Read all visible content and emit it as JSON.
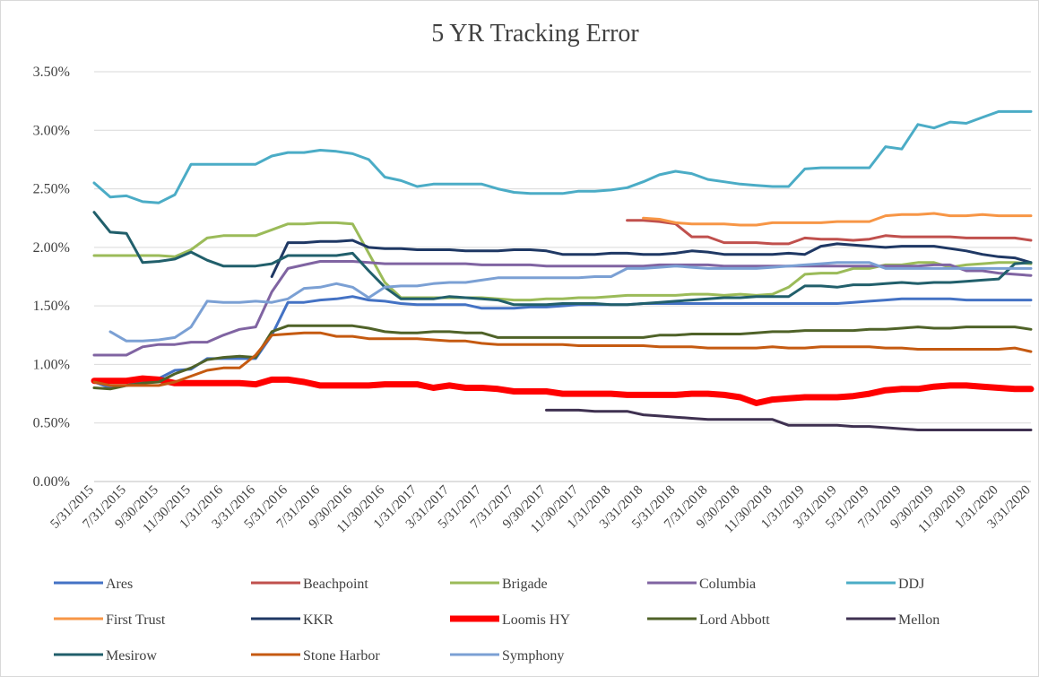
{
  "chart_data": {
    "type": "line",
    "title": "5 YR Tracking Error",
    "categories": [
      "5/31/2015",
      null,
      "7/31/2015",
      null,
      "9/30/2015",
      null,
      "11/30/2015",
      null,
      "1/31/2016",
      null,
      "3/31/2016",
      null,
      "5/31/2016",
      null,
      "7/31/2016",
      null,
      "9/30/2016",
      null,
      "11/30/2016",
      null,
      "1/31/2017",
      null,
      "3/31/2017",
      null,
      "5/31/2017",
      null,
      "7/31/2017",
      null,
      "9/30/2017",
      null,
      "11/30/2017",
      null,
      "1/31/2018",
      null,
      "3/31/2018",
      null,
      "5/31/2018",
      null,
      "7/31/2018",
      null,
      "9/30/2018",
      null,
      "11/30/2018",
      null,
      "1/31/2019",
      null,
      "3/31/2019",
      null,
      "5/31/2019",
      null,
      "7/31/2019",
      null,
      "9/30/2019",
      null,
      "11/30/2019",
      null,
      "1/31/2020",
      null,
      "3/31/2020"
    ],
    "ylim": [
      0,
      3.5
    ],
    "yticks": [
      {
        "value": 0,
        "label": "0.00%"
      },
      {
        "value": 0.5,
        "label": "0.50%"
      },
      {
        "value": 1,
        "label": "1.00%"
      },
      {
        "value": 1.5,
        "label": "1.50%"
      },
      {
        "value": 2,
        "label": "2.00%"
      },
      {
        "value": 2.5,
        "label": "2.50%"
      },
      {
        "value": 3,
        "label": "3.00%"
      },
      {
        "value": 3.5,
        "label": "3.50%"
      }
    ],
    "grid": true,
    "legend": "bottom",
    "series": [
      {
        "name": "Ares",
        "color": "#4472c4",
        "values": [
          0.85,
          0.8,
          0.82,
          0.85,
          0.88,
          0.95,
          0.96,
          1.05,
          1.05,
          1.05,
          1.05,
          1.25,
          1.53,
          1.53,
          1.55,
          1.56,
          1.58,
          1.55,
          1.54,
          1.52,
          1.51,
          1.51,
          1.51,
          1.51,
          1.48,
          1.48,
          1.48,
          1.49,
          1.49,
          1.5,
          1.51,
          1.51,
          1.51,
          1.51,
          1.52,
          1.52,
          1.52,
          1.52,
          1.52,
          1.52,
          1.52,
          1.52,
          1.52,
          1.52,
          1.52,
          1.52,
          1.52,
          1.53,
          1.54,
          1.55,
          1.56,
          1.56,
          1.56,
          1.56,
          1.55,
          1.55,
          1.55,
          1.55,
          1.55
        ]
      },
      {
        "name": "Beachpoint",
        "color": "#c0504d",
        "values": [
          null,
          null,
          null,
          null,
          null,
          null,
          null,
          null,
          null,
          null,
          null,
          null,
          null,
          null,
          null,
          null,
          null,
          null,
          null,
          null,
          null,
          null,
          null,
          null,
          null,
          null,
          null,
          null,
          null,
          null,
          null,
          null,
          null,
          2.23,
          2.23,
          2.22,
          2.2,
          2.09,
          2.09,
          2.04,
          2.04,
          2.04,
          2.03,
          2.03,
          2.08,
          2.07,
          2.07,
          2.06,
          2.07,
          2.1,
          2.09,
          2.09,
          2.09,
          2.09,
          2.08,
          2.08,
          2.08,
          2.08,
          2.06
        ]
      },
      {
        "name": "Brigade",
        "color": "#9bbb59",
        "values": [
          1.93,
          1.93,
          1.93,
          1.93,
          1.93,
          1.92,
          1.98,
          2.08,
          2.1,
          2.1,
          2.1,
          2.15,
          2.2,
          2.2,
          2.21,
          2.21,
          2.2,
          1.95,
          1.7,
          1.57,
          1.57,
          1.57,
          1.57,
          1.57,
          1.57,
          1.56,
          1.55,
          1.55,
          1.56,
          1.56,
          1.57,
          1.57,
          1.58,
          1.59,
          1.59,
          1.59,
          1.59,
          1.6,
          1.6,
          1.59,
          1.6,
          1.59,
          1.6,
          1.66,
          1.77,
          1.78,
          1.78,
          1.82,
          1.82,
          1.85,
          1.85,
          1.87,
          1.87,
          1.83,
          1.85,
          1.86,
          1.87,
          1.87,
          1.86
        ]
      },
      {
        "name": "Columbia",
        "color": "#8064a2",
        "values": [
          1.08,
          1.08,
          1.08,
          1.15,
          1.17,
          1.17,
          1.19,
          1.19,
          1.25,
          1.3,
          1.32,
          1.62,
          1.82,
          1.85,
          1.88,
          1.88,
          1.88,
          1.87,
          1.86,
          1.86,
          1.86,
          1.86,
          1.86,
          1.86,
          1.85,
          1.85,
          1.85,
          1.85,
          1.84,
          1.84,
          1.84,
          1.84,
          1.84,
          1.84,
          1.84,
          1.85,
          1.85,
          1.85,
          1.85,
          1.84,
          1.84,
          1.84,
          1.84,
          1.84,
          1.84,
          1.84,
          1.84,
          1.84,
          1.84,
          1.84,
          1.84,
          1.84,
          1.85,
          1.85,
          1.8,
          1.8,
          1.78,
          1.77,
          1.76
        ]
      },
      {
        "name": "DDJ",
        "color": "#4bacc6",
        "values": [
          2.55,
          2.43,
          2.44,
          2.39,
          2.38,
          2.45,
          2.71,
          2.71,
          2.71,
          2.71,
          2.71,
          2.78,
          2.81,
          2.81,
          2.83,
          2.82,
          2.8,
          2.75,
          2.6,
          2.57,
          2.52,
          2.54,
          2.54,
          2.54,
          2.54,
          2.5,
          2.47,
          2.46,
          2.46,
          2.46,
          2.48,
          2.48,
          2.49,
          2.51,
          2.56,
          2.62,
          2.65,
          2.63,
          2.58,
          2.56,
          2.54,
          2.53,
          2.52,
          2.52,
          2.67,
          2.68,
          2.68,
          2.68,
          2.68,
          2.86,
          2.84,
          3.05,
          3.02,
          3.07,
          3.06,
          3.11,
          3.16,
          3.16,
          3.16
        ]
      },
      {
        "name": "First Trust",
        "color": "#f79646",
        "values": [
          null,
          null,
          null,
          null,
          null,
          null,
          null,
          null,
          null,
          null,
          null,
          null,
          null,
          null,
          null,
          null,
          null,
          null,
          null,
          null,
          null,
          null,
          null,
          null,
          null,
          null,
          null,
          null,
          null,
          null,
          null,
          null,
          null,
          null,
          2.25,
          2.24,
          2.21,
          2.2,
          2.2,
          2.2,
          2.19,
          2.19,
          2.21,
          2.21,
          2.21,
          2.21,
          2.22,
          2.22,
          2.22,
          2.27,
          2.28,
          2.28,
          2.29,
          2.27,
          2.27,
          2.28,
          2.27,
          2.27,
          2.27
        ]
      },
      {
        "name": "KKR",
        "color": "#1f3864",
        "values": [
          null,
          null,
          null,
          null,
          null,
          null,
          null,
          null,
          null,
          null,
          null,
          1.75,
          2.04,
          2.04,
          2.05,
          2.05,
          2.06,
          2.0,
          1.99,
          1.99,
          1.98,
          1.98,
          1.98,
          1.97,
          1.97,
          1.97,
          1.98,
          1.98,
          1.97,
          1.94,
          1.94,
          1.94,
          1.95,
          1.95,
          1.94,
          1.94,
          1.95,
          1.97,
          1.96,
          1.94,
          1.94,
          1.94,
          1.94,
          1.95,
          1.94,
          2.01,
          2.03,
          2.02,
          2.01,
          2.0,
          2.01,
          2.01,
          2.01,
          1.99,
          1.97,
          1.94,
          1.92,
          1.91,
          1.87
        ]
      },
      {
        "name": "Loomis HY",
        "color": "#ff0000",
        "line_width": 7,
        "values": [
          0.86,
          0.86,
          0.86,
          0.88,
          0.87,
          0.84,
          0.84,
          0.84,
          0.84,
          0.84,
          0.83,
          0.87,
          0.87,
          0.85,
          0.82,
          0.82,
          0.82,
          0.82,
          0.83,
          0.83,
          0.83,
          0.8,
          0.82,
          0.8,
          0.8,
          0.79,
          0.77,
          0.77,
          0.77,
          0.75,
          0.75,
          0.75,
          0.75,
          0.74,
          0.74,
          0.74,
          0.74,
          0.75,
          0.75,
          0.74,
          0.72,
          0.67,
          0.7,
          0.71,
          0.72,
          0.72,
          0.72,
          0.73,
          0.75,
          0.78,
          0.79,
          0.79,
          0.81,
          0.82,
          0.82,
          0.81,
          0.8,
          0.79,
          0.79
        ]
      },
      {
        "name": "Lord Abbott",
        "color": "#4f6228",
        "values": [
          0.8,
          0.79,
          0.82,
          0.84,
          0.85,
          0.92,
          0.97,
          1.04,
          1.06,
          1.07,
          1.06,
          1.28,
          1.33,
          1.33,
          1.33,
          1.33,
          1.33,
          1.31,
          1.28,
          1.27,
          1.27,
          1.28,
          1.28,
          1.27,
          1.27,
          1.23,
          1.23,
          1.23,
          1.23,
          1.23,
          1.23,
          1.23,
          1.23,
          1.23,
          1.23,
          1.25,
          1.25,
          1.26,
          1.26,
          1.26,
          1.26,
          1.27,
          1.28,
          1.28,
          1.29,
          1.29,
          1.29,
          1.29,
          1.3,
          1.3,
          1.31,
          1.32,
          1.31,
          1.31,
          1.32,
          1.32,
          1.32,
          1.32,
          1.3
        ]
      },
      {
        "name": "Mellon",
        "color": "#3f3151",
        "values": [
          null,
          null,
          null,
          null,
          null,
          null,
          null,
          null,
          null,
          null,
          null,
          null,
          null,
          null,
          null,
          null,
          null,
          null,
          null,
          null,
          null,
          null,
          null,
          null,
          null,
          null,
          null,
          null,
          0.61,
          0.61,
          0.61,
          0.6,
          0.6,
          0.6,
          0.57,
          0.56,
          0.55,
          0.54,
          0.53,
          0.53,
          0.53,
          0.53,
          0.53,
          0.48,
          0.48,
          0.48,
          0.48,
          0.47,
          0.47,
          0.46,
          0.45,
          0.44,
          0.44,
          0.44,
          0.44,
          0.44,
          0.44,
          0.44,
          0.44
        ]
      },
      {
        "name": "Mesirow",
        "color": "#215f6b",
        "values": [
          2.3,
          2.13,
          2.12,
          1.87,
          1.88,
          1.9,
          1.96,
          1.89,
          1.84,
          1.84,
          1.84,
          1.86,
          1.93,
          1.93,
          1.93,
          1.93,
          1.95,
          1.8,
          1.66,
          1.56,
          1.56,
          1.56,
          1.58,
          1.57,
          1.56,
          1.55,
          1.51,
          1.51,
          1.51,
          1.52,
          1.52,
          1.52,
          1.51,
          1.51,
          1.52,
          1.53,
          1.54,
          1.55,
          1.56,
          1.57,
          1.57,
          1.58,
          1.58,
          1.58,
          1.67,
          1.67,
          1.66,
          1.68,
          1.68,
          1.69,
          1.7,
          1.69,
          1.7,
          1.7,
          1.71,
          1.72,
          1.73,
          1.86,
          1.87
        ]
      },
      {
        "name": "Stone Harbor",
        "color": "#c55a11",
        "values": [
          0.85,
          0.82,
          0.82,
          0.82,
          0.82,
          0.85,
          0.9,
          0.95,
          0.97,
          0.97,
          1.08,
          1.25,
          1.26,
          1.27,
          1.27,
          1.24,
          1.24,
          1.22,
          1.22,
          1.22,
          1.22,
          1.21,
          1.2,
          1.2,
          1.18,
          1.17,
          1.17,
          1.17,
          1.17,
          1.17,
          1.16,
          1.16,
          1.16,
          1.16,
          1.16,
          1.15,
          1.15,
          1.15,
          1.14,
          1.14,
          1.14,
          1.14,
          1.15,
          1.14,
          1.14,
          1.15,
          1.15,
          1.15,
          1.15,
          1.14,
          1.14,
          1.13,
          1.13,
          1.13,
          1.13,
          1.13,
          1.13,
          1.14,
          1.11
        ]
      },
      {
        "name": "Symphony",
        "color": "#7ba0d4",
        "values": [
          null,
          1.28,
          1.2,
          1.2,
          1.21,
          1.23,
          1.32,
          1.54,
          1.53,
          1.53,
          1.54,
          1.53,
          1.56,
          1.65,
          1.66,
          1.69,
          1.66,
          1.57,
          1.66,
          1.67,
          1.67,
          1.69,
          1.7,
          1.7,
          1.72,
          1.74,
          1.74,
          1.74,
          1.74,
          1.74,
          1.74,
          1.75,
          1.75,
          1.82,
          1.82,
          1.83,
          1.84,
          1.83,
          1.82,
          1.82,
          1.82,
          1.82,
          1.83,
          1.84,
          1.85,
          1.86,
          1.87,
          1.87,
          1.87,
          1.82,
          1.82,
          1.82,
          1.82,
          1.82,
          1.82,
          1.82,
          1.82,
          1.82,
          1.82
        ]
      }
    ]
  }
}
